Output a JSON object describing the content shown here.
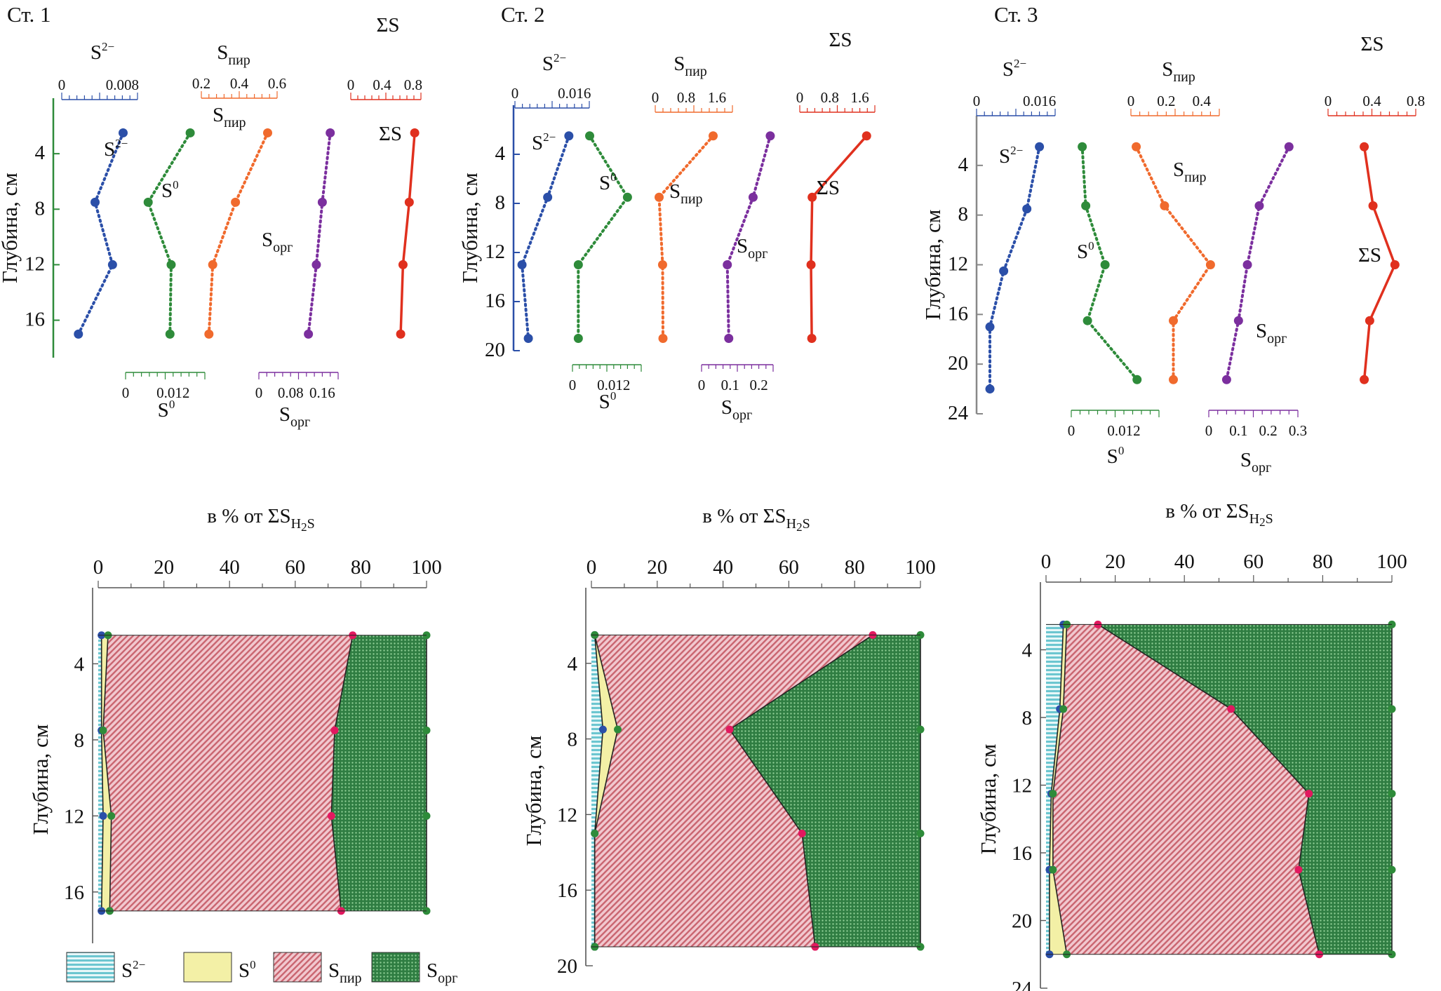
{
  "chart_data": [
    {
      "type": "line",
      "panel": "Ст. 1 — profiles",
      "title": "Ст. 1",
      "ylabel": "Глубина, см",
      "ylim": [
        0,
        18.7
      ],
      "y_ticks": [
        4,
        8,
        12,
        16
      ],
      "y_tick_labels": [
        "4",
        "8",
        "12",
        "16"
      ],
      "series": [
        {
          "name": "S2−",
          "color": "#2b4fa8",
          "style": "dotted",
          "x_ticks": [
            0,
            0.008
          ],
          "x_tick_labels": [
            "0",
            "0.008"
          ],
          "xlim": [
            0,
            0.01
          ],
          "depth": [
            2.5,
            7.5,
            12.0,
            17.0
          ],
          "values": [
            0.0081,
            0.0044,
            0.0067,
            0.0022
          ]
        },
        {
          "name": "S0",
          "color": "#2e8b3a",
          "style": "dotted",
          "x_ticks": [
            0,
            0.012
          ],
          "x_tick_labels": [
            "0",
            "0.012"
          ],
          "xlim": [
            0,
            0.02
          ],
          "depth": [
            2.5,
            7.5,
            12.0,
            17.0
          ],
          "values": [
            0.0163,
            0.0057,
            0.0115,
            0.0112
          ]
        },
        {
          "name": "Sпир",
          "color": "#f06a2d",
          "style": "dotted",
          "x_ticks": [
            0.2,
            0.4,
            0.6
          ],
          "x_tick_labels": [
            "0.2",
            "0.4",
            "0.6"
          ],
          "xlim": [
            0.2,
            0.6
          ],
          "depth": [
            2.5,
            7.5,
            12.0,
            17.0
          ],
          "values": [
            0.55,
            0.38,
            0.26,
            0.24
          ]
        },
        {
          "name": "Sорг",
          "color": "#7b2f9e",
          "style": "dotted",
          "x_ticks": [
            0,
            0.08,
            0.16
          ],
          "x_tick_labels": [
            "0",
            "0.08",
            "0.16"
          ],
          "xlim": [
            0,
            0.2
          ],
          "depth": [
            2.5,
            7.5,
            12.0,
            17.0
          ],
          "values": [
            0.18,
            0.16,
            0.145,
            0.125
          ]
        },
        {
          "name": "ΣS",
          "color": "#e0301e",
          "style": "solid",
          "x_ticks": [
            0,
            0.4,
            0.8
          ],
          "x_tick_labels": [
            "0",
            "0.4",
            "0.8"
          ],
          "xlim": [
            0,
            0.9
          ],
          "depth": [
            2.5,
            7.5,
            12.0,
            17.0
          ],
          "values": [
            0.82,
            0.75,
            0.67,
            0.64
          ]
        }
      ]
    },
    {
      "type": "line",
      "panel": "Ст. 2 — profiles",
      "title": "Ст. 2",
      "ylabel": "Глубина, см",
      "ylim": [
        0,
        20
      ],
      "y_ticks": [
        4,
        8,
        12,
        16,
        20
      ],
      "y_tick_labels": [
        "4",
        "8",
        "12",
        "16",
        "20"
      ],
      "series": [
        {
          "name": "S2−",
          "color": "#2b4fa8",
          "style": "dotted",
          "x_ticks": [
            0,
            0.016
          ],
          "x_tick_labels": [
            "0",
            "0.016"
          ],
          "xlim": [
            0,
            0.02
          ],
          "depth": [
            2.5,
            7.5,
            13.0,
            19.0
          ],
          "values": [
            0.0145,
            0.0088,
            0.0019,
            0.0036
          ]
        },
        {
          "name": "S0",
          "color": "#2e8b3a",
          "style": "dotted",
          "x_ticks": [
            0,
            0.012
          ],
          "x_tick_labels": [
            "0",
            "0.012"
          ],
          "xlim": [
            0,
            0.02
          ],
          "depth": [
            2.5,
            7.5,
            13.0,
            19.0
          ],
          "values": [
            0.005,
            0.016,
            0.0017,
            0.0017
          ]
        },
        {
          "name": "Sпир",
          "color": "#f06a2d",
          "style": "dotted",
          "x_ticks": [
            0,
            0.8,
            1.6
          ],
          "x_tick_labels": [
            "0",
            "0.8",
            "1.6"
          ],
          "xlim": [
            0,
            2.0
          ],
          "depth": [
            2.5,
            7.5,
            13.0,
            19.0
          ],
          "values": [
            1.5,
            0.1,
            0.19,
            0.2
          ]
        },
        {
          "name": "Sорг",
          "color": "#7b2f9e",
          "style": "dotted",
          "x_ticks": [
            0,
            0.1,
            0.2
          ],
          "x_tick_labels": [
            "0",
            "0.1",
            "0.2"
          ],
          "xlim": [
            0,
            0.25
          ],
          "depth": [
            2.5,
            7.5,
            13.0,
            19.0
          ],
          "values": [
            0.24,
            0.18,
            0.09,
            0.095
          ]
        },
        {
          "name": "ΣS",
          "color": "#e0301e",
          "style": "solid",
          "x_ticks": [
            0,
            0.8,
            1.6
          ],
          "x_tick_labels": [
            "0",
            "0.8",
            "1.6"
          ],
          "xlim": [
            0,
            2.0
          ],
          "depth": [
            2.5,
            7.5,
            13.0,
            19.0
          ],
          "values": [
            1.78,
            0.33,
            0.3,
            0.32
          ]
        }
      ]
    },
    {
      "type": "line",
      "panel": "Ст. 3 — profiles",
      "title": "Ст. 3",
      "ylabel": "Глубина, см",
      "ylim": [
        0,
        24
      ],
      "y_ticks": [
        4,
        8,
        12,
        16,
        20,
        24
      ],
      "y_tick_labels": [
        "4",
        "8",
        "12",
        "16",
        "20",
        "24"
      ],
      "series": [
        {
          "name": "S2−",
          "color": "#2b4fa8",
          "style": "dotted",
          "x_ticks": [
            0,
            0.016
          ],
          "x_tick_labels": [
            "0",
            "0.016"
          ],
          "xlim": [
            0,
            0.02
          ],
          "depth": [
            2.5,
            7.5,
            12.5,
            17.0,
            22.0
          ],
          "values": [
            0.016,
            0.0128,
            0.0069,
            0.0034,
            0.0034
          ]
        },
        {
          "name": "S0",
          "color": "#2e8b3a",
          "style": "dotted",
          "x_ticks": [
            0,
            0.012
          ],
          "x_tick_labels": [
            "0",
            "0.012"
          ],
          "xlim": [
            0,
            0.02
          ],
          "depth": [
            2.5,
            7.25,
            12.0,
            16.5,
            21.25
          ],
          "values": [
            0.0025,
            0.0033,
            0.0077,
            0.0037,
            0.015
          ]
        },
        {
          "name": "Sпир",
          "color": "#f06a2d",
          "style": "dotted",
          "x_ticks": [
            0,
            0.2,
            0.4
          ],
          "x_tick_labels": [
            "0",
            "0.2",
            "0.4"
          ],
          "xlim": [
            0,
            0.5
          ],
          "depth": [
            2.5,
            7.25,
            12.0,
            16.5,
            21.25
          ],
          "values": [
            0.03,
            0.19,
            0.45,
            0.24,
            0.24
          ]
        },
        {
          "name": "Sорг",
          "color": "#7b2f9e",
          "style": "dotted",
          "x_ticks": [
            0,
            0.1,
            0.2,
            0.3
          ],
          "x_tick_labels": [
            "0",
            "0.1",
            "0.2",
            "0.3"
          ],
          "xlim": [
            0,
            0.3
          ],
          "depth": [
            2.5,
            7.25,
            12.0,
            16.5,
            21.25
          ],
          "values": [
            0.27,
            0.17,
            0.13,
            0.1,
            0.06
          ]
        },
        {
          "name": "ΣS",
          "color": "#e0301e",
          "style": "solid",
          "x_ticks": [
            0,
            0.4,
            0.8
          ],
          "x_tick_labels": [
            "0",
            "0.4",
            "0.8"
          ],
          "xlim": [
            0,
            0.8
          ],
          "depth": [
            2.5,
            7.25,
            12.0,
            16.5,
            21.25
          ],
          "values": [
            0.33,
            0.41,
            0.61,
            0.38,
            0.33
          ]
        }
      ]
    },
    {
      "type": "area",
      "panel": "Ст. 1 — composition",
      "title": "в % от ΣSH2S",
      "ylabel": "Глубина, см",
      "xlim": [
        0,
        100
      ],
      "x_ticks": [
        0,
        20,
        40,
        60,
        80,
        100
      ],
      "x_tick_labels": [
        "0",
        "20",
        "40",
        "60",
        "80",
        "100"
      ],
      "ylim": [
        0,
        18.7
      ],
      "y_ticks": [
        4,
        8,
        12,
        16
      ],
      "y_tick_labels": [
        "4",
        "8",
        "12",
        "16"
      ],
      "depth": [
        2.5,
        7.5,
        12.0,
        17.0
      ],
      "cumulative": [
        {
          "name": "S2−",
          "values": [
            1.0,
            1.0,
            1.5,
            1.0
          ]
        },
        {
          "name": "S0",
          "values": [
            3.0,
            1.5,
            4.0,
            3.5
          ]
        },
        {
          "name": "Sпир",
          "values": [
            77.5,
            72.0,
            71.0,
            74.0
          ]
        },
        {
          "name": "Sорг",
          "values": [
            100,
            100,
            100,
            100
          ]
        }
      ]
    },
    {
      "type": "area",
      "panel": "Ст. 2 — composition",
      "title": "в % от ΣSH2S",
      "ylabel": "Глубина, см",
      "xlim": [
        0,
        100
      ],
      "x_ticks": [
        0,
        20,
        40,
        60,
        80,
        100
      ],
      "x_tick_labels": [
        "0",
        "20",
        "40",
        "60",
        "80",
        "100"
      ],
      "ylim": [
        0,
        20
      ],
      "y_ticks": [
        4,
        8,
        12,
        16,
        20
      ],
      "y_tick_labels": [
        "4",
        "8",
        "12",
        "16",
        "20"
      ],
      "depth": [
        2.5,
        7.5,
        13.0,
        19.0
      ],
      "cumulative": [
        {
          "name": "S2−",
          "values": [
            1.0,
            3.5,
            1.0,
            1.0
          ]
        },
        {
          "name": "S0",
          "values": [
            1.0,
            8.0,
            1.0,
            1.0
          ]
        },
        {
          "name": "Sпир",
          "values": [
            85.5,
            42.0,
            64.0,
            68.0
          ]
        },
        {
          "name": "Sорг",
          "values": [
            100,
            100,
            100,
            100
          ]
        }
      ]
    },
    {
      "type": "area",
      "panel": "Ст. 3 — composition",
      "title": "в % от ΣSH2S",
      "ylabel": "Глубина, см",
      "xlim": [
        0,
        100
      ],
      "x_ticks": [
        0,
        20,
        40,
        60,
        80,
        100
      ],
      "x_tick_labels": [
        "0",
        "20",
        "40",
        "60",
        "80",
        "100"
      ],
      "ylim": [
        0,
        24
      ],
      "y_ticks": [
        4,
        8,
        12,
        16,
        20,
        24
      ],
      "y_tick_labels": [
        "4",
        "8",
        "12",
        "16",
        "20",
        "24"
      ],
      "depth": [
        2.5,
        7.5,
        12.5,
        17.0,
        22.0
      ],
      "cumulative": [
        {
          "name": "S2−",
          "values": [
            5.0,
            4.0,
            1.5,
            1.0,
            1.0
          ]
        },
        {
          "name": "S0",
          "values": [
            6.0,
            5.0,
            2.0,
            2.0,
            6.0
          ]
        },
        {
          "name": "Sпир",
          "values": [
            15.0,
            53.5,
            76.0,
            73.0,
            79.0
          ]
        },
        {
          "name": "Sорг",
          "values": [
            100,
            100,
            100,
            100,
            100
          ]
        }
      ]
    }
  ],
  "legend": [
    {
      "label": "S",
      "sup": "2−",
      "sub": ""
    },
    {
      "label": "S",
      "sup": "0",
      "sub": ""
    },
    {
      "label": "S",
      "sup": "",
      "sub": "пир"
    },
    {
      "label": "S",
      "sup": "",
      "sub": "орг"
    }
  ],
  "colors": {
    "S2−": "#2b4fa8",
    "S0": "#2e8b3a",
    "Sпир": "#f06a2d",
    "Sорг": "#7b2f9e",
    "ΣS": "#e0301e",
    "fill_S2−": "#7ecfd8",
    "fill_S0": "#f3f0a6",
    "fill_Sпир": "#e3a0ac",
    "fill_Sорг": "#3f9a52",
    "point_Sпир": "#e2185f"
  }
}
